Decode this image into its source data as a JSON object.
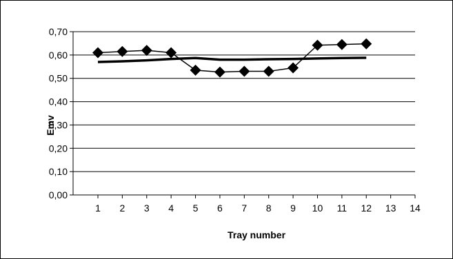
{
  "chart_data": {
    "type": "line",
    "title": "",
    "xlabel": "Tray number",
    "ylabel": "Emv",
    "x_ticks": [
      "1",
      "2",
      "3",
      "4",
      "5",
      "6",
      "7",
      "8",
      "9",
      "10",
      "11",
      "12",
      "13",
      "14"
    ],
    "y_ticks": [
      "0,00",
      "0,10",
      "0,20",
      "0,30",
      "0,40",
      "0,50",
      "0,60",
      "0,70"
    ],
    "xlim": [
      1,
      14
    ],
    "ylim": [
      0,
      0.7
    ],
    "grid": "horizontal",
    "legend": "none",
    "series": [
      {
        "marker": "diamond",
        "color": "#000000",
        "x": [
          1,
          2,
          3,
          4,
          5,
          6,
          7,
          8,
          9,
          10,
          11,
          12
        ],
        "y": [
          0.61,
          0.615,
          0.62,
          0.61,
          0.535,
          0.527,
          0.53,
          0.53,
          0.545,
          0.642,
          0.645,
          0.648
        ]
      },
      {
        "marker": "none",
        "color": "#000000",
        "x": [
          1,
          2,
          3,
          4,
          5,
          6,
          7,
          8,
          9,
          10,
          11,
          12
        ],
        "y": [
          0.57,
          0.573,
          0.577,
          0.583,
          0.587,
          0.58,
          0.58,
          0.582,
          0.583,
          0.585,
          0.587,
          0.588
        ]
      }
    ]
  }
}
